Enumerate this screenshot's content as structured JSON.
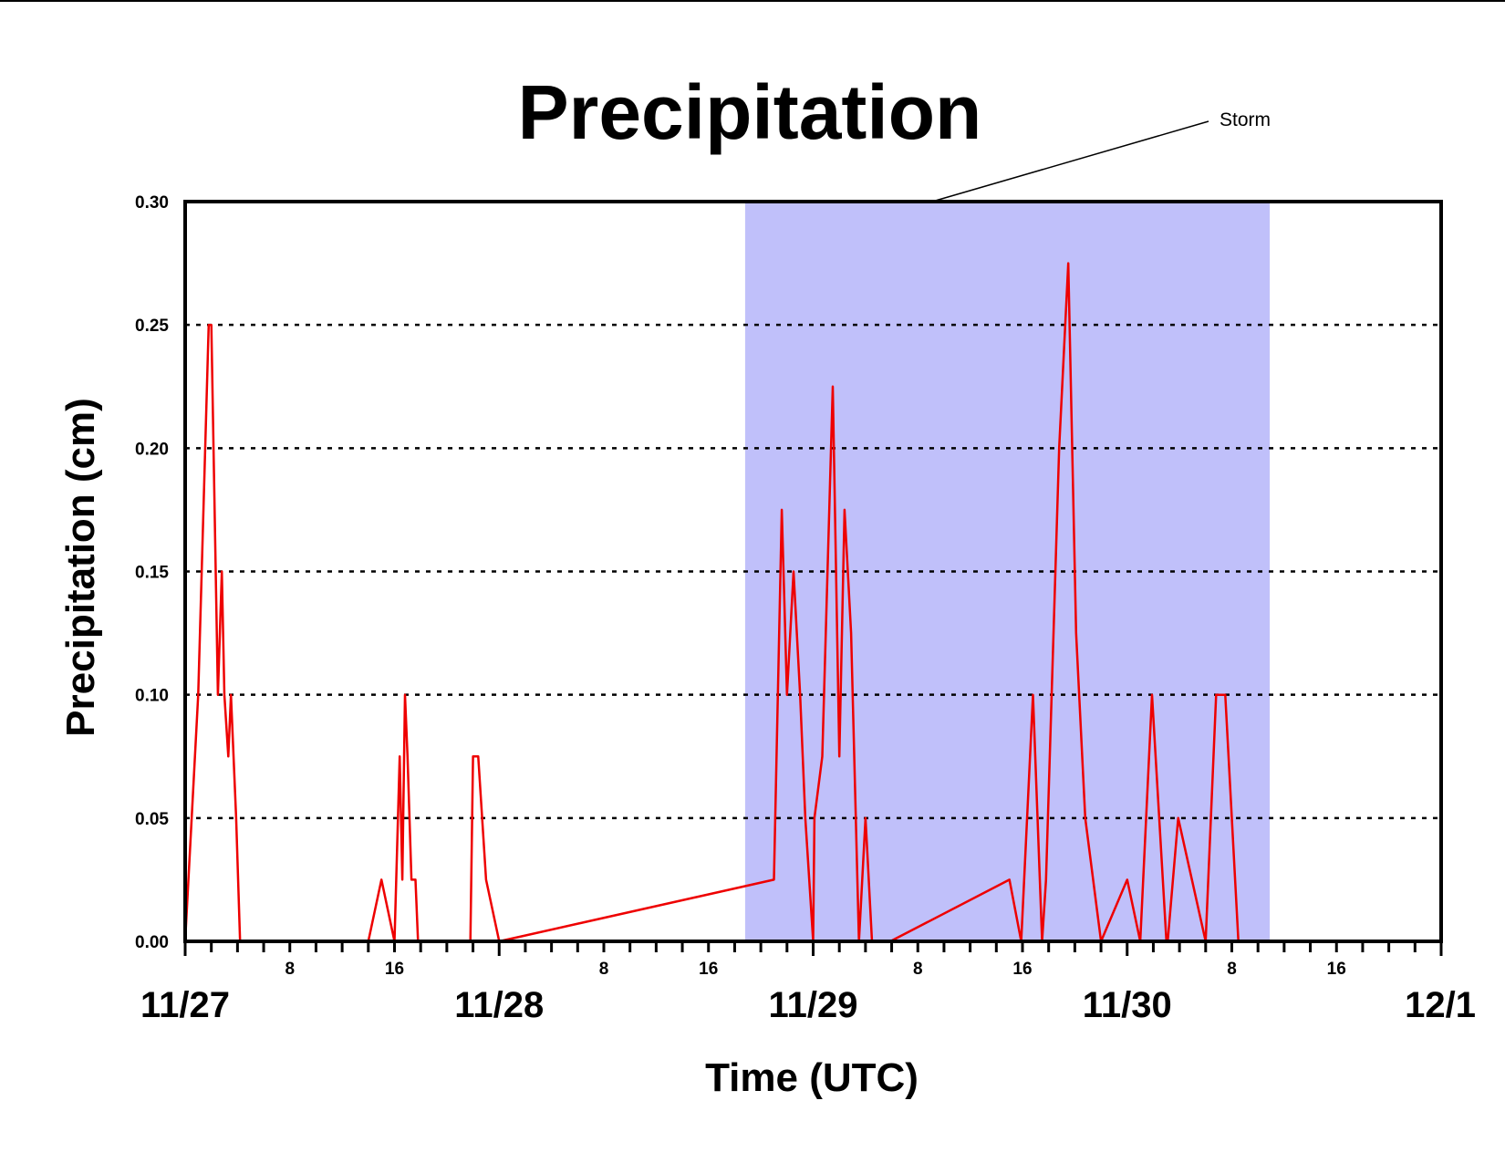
{
  "chart_data": {
    "type": "line",
    "title": "Precipitation",
    "xlabel": "Time (UTC)",
    "ylabel": "Precipitation (cm)",
    "ylim": [
      0,
      0.3
    ],
    "xlim_hours": [
      0,
      96
    ],
    "yticks": [
      "0.00",
      "0.05",
      "0.10",
      "0.15",
      "0.20",
      "0.25",
      "0.30"
    ],
    "yticks_values": [
      0,
      0.05,
      0.1,
      0.15,
      0.2,
      0.25,
      0.3
    ],
    "grid": "horizontal dotted",
    "day_labels": [
      {
        "hour": 0,
        "label": "11/27"
      },
      {
        "hour": 24,
        "label": "11/28"
      },
      {
        "hour": 48,
        "label": "11/29"
      },
      {
        "hour": 72,
        "label": "11/30"
      },
      {
        "hour": 96,
        "label": "12/1"
      }
    ],
    "hour_labels": [
      {
        "hour": 8,
        "label": "8"
      },
      {
        "hour": 16,
        "label": "16"
      },
      {
        "hour": 32,
        "label": "8"
      },
      {
        "hour": 40,
        "label": "16"
      },
      {
        "hour": 56,
        "label": "8"
      },
      {
        "hour": 64,
        "label": "16"
      },
      {
        "hour": 80,
        "label": "8"
      },
      {
        "hour": 88,
        "label": "16"
      }
    ],
    "minor_tick_step_hours": 2,
    "annotations": [
      {
        "type": "shaded-region",
        "label": "Storm",
        "x_start_hour": 42.8,
        "x_end_hour": 82.9,
        "color": "#c0c0fa"
      }
    ],
    "colors": {
      "line": "#ee0000",
      "storm_fill": "#c0c0fa",
      "grid": "#000000"
    },
    "series": [
      {
        "color": "#ee0000",
        "x": [
          0,
          1,
          1.8,
          2.0,
          2.5,
          2.8,
          3.0,
          3.3,
          3.5,
          3.9,
          4.2,
          5.0,
          14.0,
          15.0,
          16.0,
          16.4,
          16.6,
          16.8,
          17.0,
          17.3,
          17.6,
          17.8,
          18.0,
          21.8,
          22.0,
          22.4,
          23.0,
          24.0,
          45.0,
          45.6,
          46.0,
          46.5,
          47.0,
          47.4,
          48.0,
          48.1,
          48.7,
          49.5,
          50.0,
          50.4,
          50.9,
          51.5,
          52.0,
          52.5,
          53.0,
          53.9,
          63.0,
          63.9,
          64.8,
          65.5,
          65.8,
          66.8,
          67.5,
          68.1,
          68.8,
          70.0,
          72.0,
          73.0,
          73.9,
          75.0,
          75.1,
          75.9,
          78.0,
          78.8,
          79.5,
          80.5,
          81.0,
          82.0,
          96.0
        ],
        "values": [
          0.0,
          0.1,
          0.25,
          0.25,
          0.1,
          0.15,
          0.1,
          0.075,
          0.1,
          0.05,
          0.0,
          0.0,
          0.0,
          0.025,
          0.0,
          0.075,
          0.025,
          0.1,
          0.075,
          0.025,
          0.025,
          0.0,
          0.0,
          0.0,
          0.075,
          0.075,
          0.025,
          0.0,
          0.025,
          0.175,
          0.1,
          0.15,
          0.1,
          0.05,
          0.0,
          0.05,
          0.075,
          0.225,
          0.075,
          0.175,
          0.125,
          0.0,
          0.05,
          0.0,
          0.0,
          0.0,
          0.025,
          0.0,
          0.1,
          0.0,
          0.025,
          0.2,
          0.275,
          0.125,
          0.05,
          0.0,
          0.025,
          0.0,
          0.1,
          0.0,
          0.0,
          0.05,
          0.0,
          0.1,
          0.1,
          0.0,
          0.0,
          0.0,
          0.0
        ]
      }
    ]
  }
}
